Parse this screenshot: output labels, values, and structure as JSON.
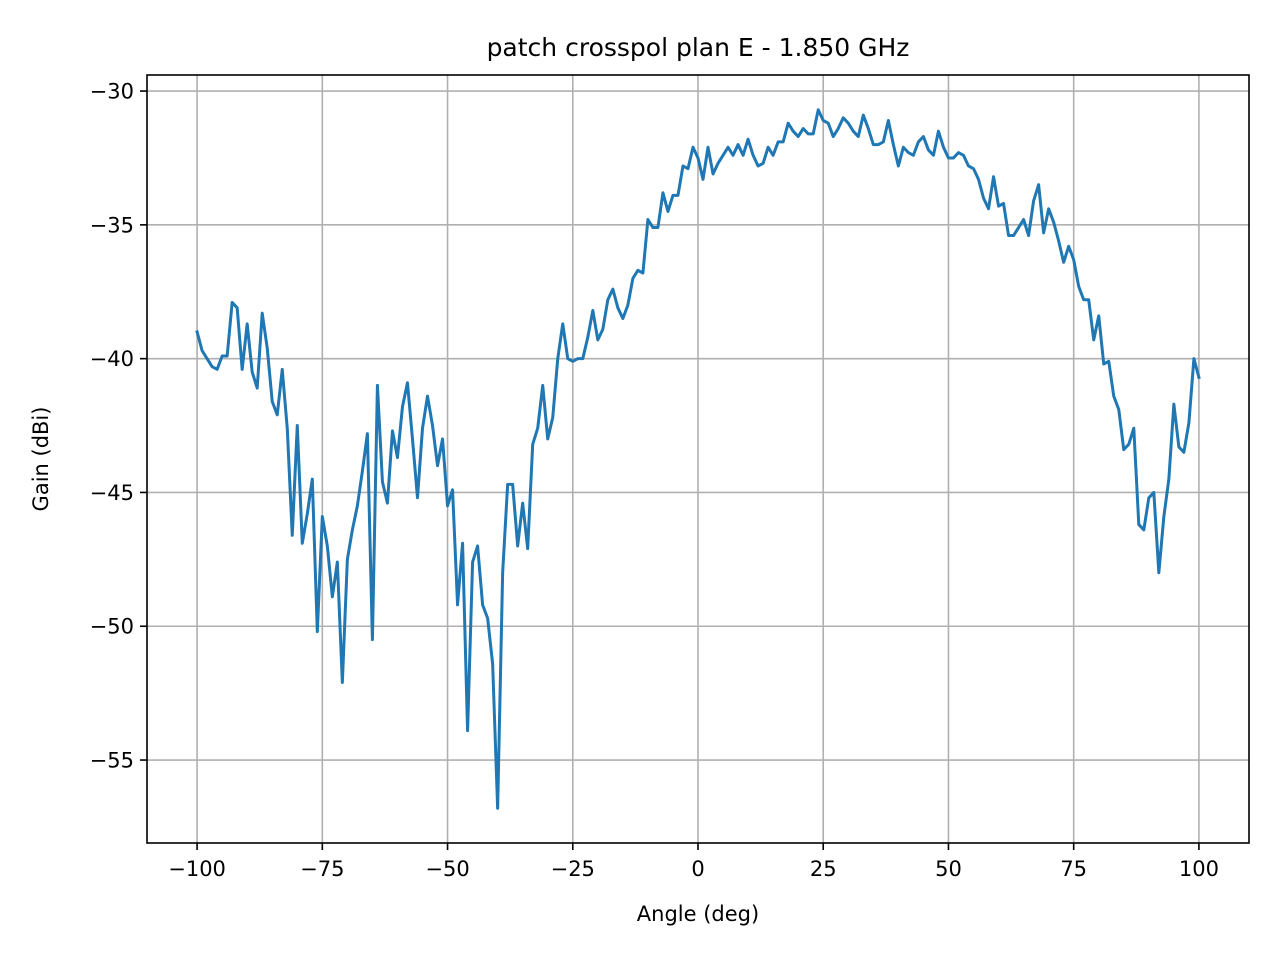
{
  "chart_data": {
    "type": "line",
    "title": "patch crosspol plan E - 1.850 GHz",
    "xlabel": "Angle (deg)",
    "ylabel": "Gain (dBi)",
    "xlim": [
      -110,
      110
    ],
    "ylim": [
      -58.1,
      -29.4
    ],
    "grid": true,
    "color": "#1f77b4",
    "x_ticks": [
      {
        "value": -100,
        "label": "−100"
      },
      {
        "value": -75,
        "label": "−75"
      },
      {
        "value": -50,
        "label": "−50"
      },
      {
        "value": -25,
        "label": "−25"
      },
      {
        "value": 0,
        "label": "0"
      },
      {
        "value": 25,
        "label": "25"
      },
      {
        "value": 50,
        "label": "50"
      },
      {
        "value": 75,
        "label": "75"
      },
      {
        "value": 100,
        "label": "100"
      }
    ],
    "y_ticks": [
      {
        "value": -30,
        "label": "−30"
      },
      {
        "value": -35,
        "label": "−35"
      },
      {
        "value": -40,
        "label": "−40"
      },
      {
        "value": -45,
        "label": "−45"
      },
      {
        "value": -50,
        "label": "−50"
      },
      {
        "value": -55,
        "label": "−55"
      }
    ],
    "series": [
      {
        "x": [
          -100,
          -99,
          -98,
          -97,
          -96,
          -95,
          -94,
          -93,
          -92,
          -91,
          -90,
          -89,
          -88,
          -87,
          -86,
          -85,
          -84,
          -83,
          -82,
          -81,
          -80,
          -79,
          -78,
          -77,
          -76,
          -75,
          -74,
          -73,
          -72,
          -71,
          -70,
          -69,
          -68,
          -67,
          -66,
          -65,
          -64,
          -63,
          -62,
          -61,
          -60,
          -59,
          -58,
          -57,
          -56,
          -55,
          -54,
          -53,
          -52,
          -51,
          -50,
          -49,
          -48,
          -47,
          -46,
          -45,
          -44,
          -43,
          -42,
          -41,
          -40,
          -39,
          -38,
          -37,
          -36,
          -35,
          -34,
          -33,
          -32,
          -31,
          -30,
          -29,
          -28,
          -27,
          -26,
          -25,
          -24,
          -23,
          -22,
          -21,
          -20,
          -19,
          -18,
          -17,
          -16,
          -15,
          -14,
          -13,
          -12,
          -11,
          -10,
          -9,
          -8,
          -7,
          -6,
          -5,
          -4,
          -3,
          -2,
          -1,
          0,
          1,
          2,
          3,
          4,
          5,
          6,
          7,
          8,
          9,
          10,
          11,
          12,
          13,
          14,
          15,
          16,
          17,
          18,
          19,
          20,
          21,
          22,
          23,
          24,
          25,
          26,
          27,
          28,
          29,
          30,
          31,
          32,
          33,
          34,
          35,
          36,
          37,
          38,
          39,
          40,
          41,
          42,
          43,
          44,
          45,
          46,
          47,
          48,
          49,
          50,
          51,
          52,
          53,
          54,
          55,
          56,
          57,
          58,
          59,
          60,
          61,
          62,
          63,
          64,
          65,
          66,
          67,
          68,
          69,
          70,
          71,
          72,
          73,
          74,
          75,
          76,
          77,
          78,
          79,
          80,
          81,
          82,
          83,
          84,
          85,
          86,
          87,
          88,
          89,
          90,
          91,
          92,
          93,
          94,
          95,
          96,
          97,
          98,
          99,
          100
        ],
        "values": [
          -39.0,
          -39.7,
          -40.0,
          -40.3,
          -40.4,
          -39.9,
          -39.9,
          -37.9,
          -38.1,
          -40.4,
          -38.7,
          -40.5,
          -41.1,
          -38.3,
          -39.6,
          -41.6,
          -42.1,
          -40.4,
          -42.6,
          -46.6,
          -42.5,
          -46.9,
          -45.8,
          -44.5,
          -50.2,
          -45.9,
          -47.0,
          -48.9,
          -47.6,
          -52.1,
          -47.5,
          -46.4,
          -45.5,
          -44.2,
          -42.8,
          -50.5,
          -41.0,
          -44.6,
          -45.4,
          -42.7,
          -43.7,
          -41.8,
          -40.9,
          -43.0,
          -45.2,
          -42.6,
          -41.4,
          -42.5,
          -44.0,
          -43.0,
          -45.5,
          -44.9,
          -49.2,
          -46.9,
          -53.9,
          -47.6,
          -47.0,
          -49.2,
          -49.7,
          -51.4,
          -56.8,
          -48.0,
          -44.7,
          -44.7,
          -47.0,
          -45.4,
          -47.1,
          -43.2,
          -42.6,
          -41.0,
          -43.0,
          -42.2,
          -40.0,
          -38.7,
          -40.0,
          -40.1,
          -40.0,
          -40.0,
          -39.2,
          -38.2,
          -39.3,
          -38.9,
          -37.8,
          -37.4,
          -38.1,
          -38.5,
          -38.0,
          -37.0,
          -36.7,
          -36.8,
          -34.8,
          -35.1,
          -35.1,
          -33.8,
          -34.5,
          -33.9,
          -33.9,
          -32.8,
          -32.9,
          -32.1,
          -32.5,
          -33.3,
          -32.1,
          -33.1,
          -32.7,
          -32.4,
          -32.1,
          -32.4,
          -32.0,
          -32.4,
          -31.8,
          -32.4,
          -32.8,
          -32.7,
          -32.1,
          -32.4,
          -31.9,
          -31.9,
          -31.2,
          -31.5,
          -31.7,
          -31.4,
          -31.6,
          -31.6,
          -30.7,
          -31.1,
          -31.2,
          -31.7,
          -31.4,
          -31.0,
          -31.2,
          -31.5,
          -31.7,
          -30.9,
          -31.4,
          -32.0,
          -32.0,
          -31.9,
          -31.1,
          -32.0,
          -32.8,
          -32.1,
          -32.3,
          -32.4,
          -31.9,
          -31.7,
          -32.2,
          -32.4,
          -31.5,
          -32.1,
          -32.5,
          -32.5,
          -32.3,
          -32.4,
          -32.8,
          -32.9,
          -33.3,
          -34.0,
          -34.4,
          -33.2,
          -34.3,
          -34.2,
          -35.4,
          -35.4,
          -35.1,
          -34.8,
          -35.4,
          -34.1,
          -33.5,
          -35.3,
          -34.4,
          -34.9,
          -35.6,
          -36.4,
          -35.8,
          -36.3,
          -37.3,
          -37.8,
          -37.8,
          -39.3,
          -38.4,
          -40.2,
          -40.1,
          -41.4,
          -41.9,
          -43.4,
          -43.2,
          -42.6,
          -46.2,
          -46.4,
          -45.2,
          -45.0,
          -48.0,
          -45.9,
          -44.5,
          -41.7,
          -43.3,
          -43.5,
          -42.4,
          -40.0,
          -40.7
        ]
      }
    ]
  }
}
